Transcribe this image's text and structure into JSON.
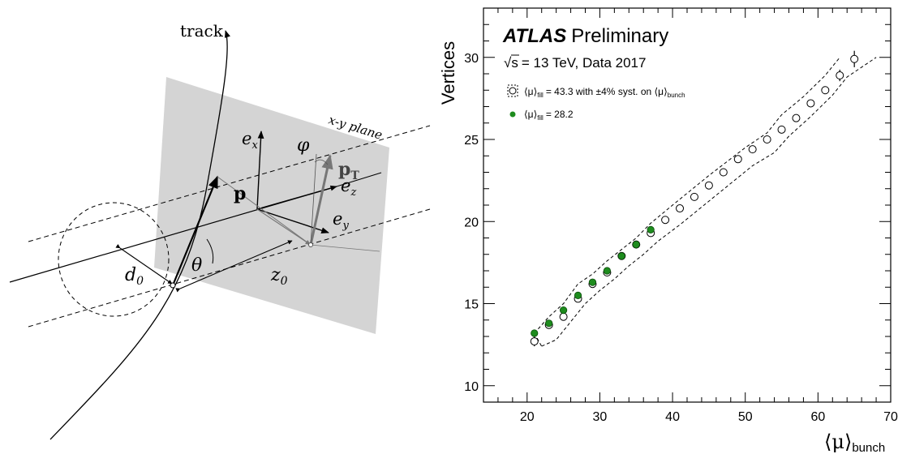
{
  "diagram": {
    "track_label": "track",
    "plane_label": "x-y plane",
    "ex": "e",
    "ex_sub": "x",
    "ey": "e",
    "ey_sub": "y",
    "ez": "e",
    "ez_sub": "z",
    "phi": "φ",
    "p": "p",
    "pT": "p",
    "pT_sub": "T",
    "theta": "θ",
    "d0": "d",
    "d0_sub": "0",
    "z0": "z",
    "z0_sub": "0"
  },
  "chart_data": {
    "type": "scatter",
    "title": "ATLAS",
    "title_suffix": "Preliminary",
    "subtitle_pre": "√s",
    "subtitle": "= 13 TeV, Data 2017",
    "ylabel": "Vertices",
    "xlabel": "⟨μ⟩",
    "xlabel_sub": "bunch",
    "xlim": [
      14,
      70
    ],
    "ylim": [
      9,
      33
    ],
    "x_ticks": [
      20,
      30,
      40,
      50,
      60,
      70
    ],
    "y_ticks": [
      10,
      15,
      20,
      25,
      30
    ],
    "grid": false,
    "legend_position": "top-left",
    "series": [
      {
        "name_pre": "⟨μ⟩",
        "name_sub": "fill",
        "name": "= 43.3 with ±4% syst. on ⟨μ⟩",
        "name_tail_sub": "bunch",
        "marker": "open-circle",
        "color": "#000000",
        "x": [
          21,
          23,
          25,
          27,
          29,
          31,
          33,
          35,
          37,
          39,
          41,
          43,
          45,
          47,
          49,
          51,
          53,
          55,
          57,
          59,
          61,
          63,
          65
        ],
        "y": [
          12.7,
          13.7,
          14.2,
          15.3,
          16.2,
          16.9,
          17.9,
          18.6,
          19.3,
          20.1,
          20.8,
          21.5,
          22.2,
          23.0,
          23.8,
          24.4,
          25.0,
          25.6,
          26.3,
          27.2,
          28.0,
          28.9,
          29.9
        ],
        "yerr": [
          0.3,
          0.2,
          0.2,
          0.15,
          0.15,
          0.15,
          0.15,
          0.15,
          0.15,
          0.15,
          0.15,
          0.15,
          0.15,
          0.15,
          0.15,
          0.15,
          0.15,
          0.15,
          0.15,
          0.15,
          0.2,
          0.35,
          0.5
        ],
        "band_upper": [
          [
            21,
            13.2
          ],
          [
            23,
            14.2
          ],
          [
            25,
            15.0
          ],
          [
            27,
            16.2
          ],
          [
            29,
            16.8
          ],
          [
            31,
            17.6
          ],
          [
            33,
            18.3
          ],
          [
            35,
            19.0
          ],
          [
            37,
            19.9
          ],
          [
            40,
            21.0
          ],
          [
            45,
            22.8
          ],
          [
            50,
            24.5
          ],
          [
            53,
            25.4
          ],
          [
            55,
            26.5
          ],
          [
            58,
            27.6
          ],
          [
            61,
            28.9
          ],
          [
            63,
            30.0
          ]
        ],
        "band_lower": [
          [
            22,
            12.4
          ],
          [
            24,
            12.8
          ],
          [
            26,
            13.9
          ],
          [
            28,
            15.0
          ],
          [
            30,
            15.8
          ],
          [
            32,
            16.5
          ],
          [
            34,
            17.3
          ],
          [
            36,
            18.0
          ],
          [
            38,
            18.8
          ],
          [
            41,
            19.8
          ],
          [
            46,
            21.6
          ],
          [
            51,
            23.4
          ],
          [
            54,
            24.2
          ],
          [
            56,
            25.2
          ],
          [
            59,
            26.4
          ],
          [
            62,
            27.7
          ],
          [
            64,
            28.8
          ],
          [
            68,
            30.0
          ]
        ]
      },
      {
        "name_pre": "⟨μ⟩",
        "name_sub": "fill",
        "name": "= 28.2",
        "marker": "filled-circle",
        "color": "#1e8c1e",
        "x": [
          21,
          23,
          25,
          27,
          29,
          31,
          33,
          35,
          37
        ],
        "y": [
          13.2,
          13.8,
          14.6,
          15.5,
          16.3,
          17.0,
          17.9,
          18.6,
          19.5
        ]
      }
    ]
  }
}
